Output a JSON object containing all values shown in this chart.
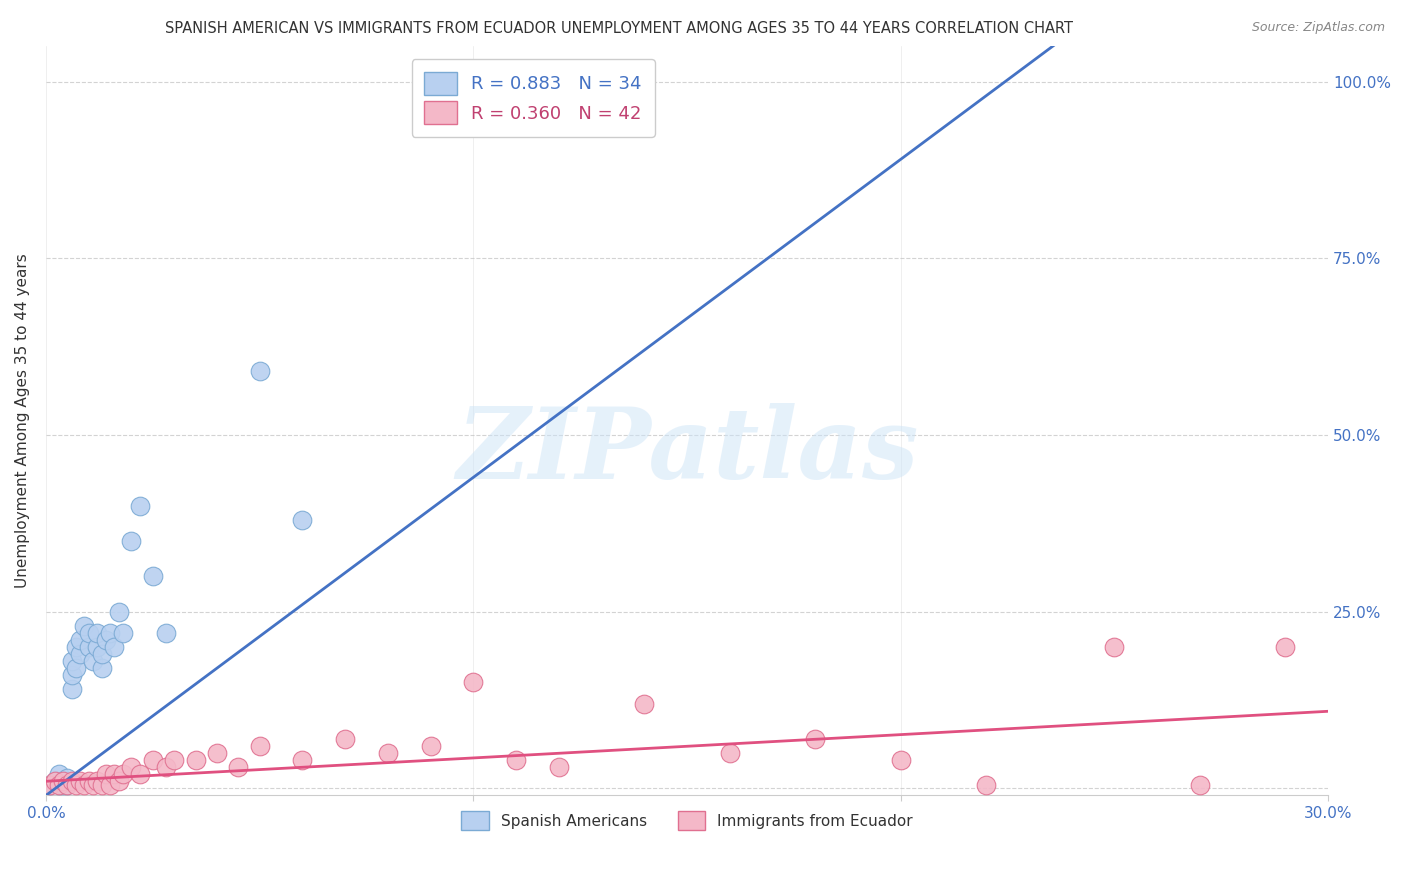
{
  "title": "SPANISH AMERICAN VS IMMIGRANTS FROM ECUADOR UNEMPLOYMENT AMONG AGES 35 TO 44 YEARS CORRELATION CHART",
  "source": "Source: ZipAtlas.com",
  "ylabel": "Unemployment Among Ages 35 to 44 years",
  "x_range": [
    0.0,
    0.3
  ],
  "y_range": [
    -0.01,
    1.05
  ],
  "watermark": "ZIPatlas",
  "legend_entries": [
    {
      "label": "R = 0.883   N = 34",
      "color": "#b8d0f0",
      "edge_color": "#7baad4",
      "text_color": "#4472c4"
    },
    {
      "label": "R = 0.360   N = 42",
      "color": "#f4b8c8",
      "edge_color": "#e07090",
      "text_color": "#c04070"
    }
  ],
  "spanish_americans": {
    "color": "#b8d0f0",
    "edge_color": "#7baad4",
    "line_color": "#4472c4",
    "x": [
      0.001,
      0.002,
      0.003,
      0.003,
      0.004,
      0.004,
      0.005,
      0.005,
      0.006,
      0.006,
      0.006,
      0.007,
      0.007,
      0.008,
      0.008,
      0.009,
      0.01,
      0.01,
      0.011,
      0.012,
      0.012,
      0.013,
      0.013,
      0.014,
      0.015,
      0.016,
      0.017,
      0.018,
      0.02,
      0.022,
      0.025,
      0.028,
      0.05,
      0.06
    ],
    "y": [
      0.005,
      0.01,
      0.005,
      0.02,
      0.005,
      0.01,
      0.005,
      0.015,
      0.14,
      0.16,
      0.18,
      0.17,
      0.2,
      0.19,
      0.21,
      0.23,
      0.2,
      0.22,
      0.18,
      0.2,
      0.22,
      0.17,
      0.19,
      0.21,
      0.22,
      0.2,
      0.25,
      0.22,
      0.35,
      0.4,
      0.3,
      0.22,
      0.59,
      0.38
    ]
  },
  "ecuador_immigrants": {
    "color": "#f4b8c8",
    "edge_color": "#e07090",
    "line_color": "#e05080",
    "x": [
      0.001,
      0.002,
      0.003,
      0.004,
      0.005,
      0.006,
      0.007,
      0.008,
      0.009,
      0.01,
      0.011,
      0.012,
      0.013,
      0.014,
      0.015,
      0.016,
      0.017,
      0.018,
      0.02,
      0.022,
      0.025,
      0.028,
      0.03,
      0.035,
      0.04,
      0.045,
      0.05,
      0.06,
      0.07,
      0.08,
      0.09,
      0.1,
      0.11,
      0.12,
      0.14,
      0.16,
      0.18,
      0.2,
      0.22,
      0.25,
      0.27,
      0.29
    ],
    "y": [
      0.005,
      0.01,
      0.005,
      0.01,
      0.005,
      0.01,
      0.005,
      0.01,
      0.005,
      0.01,
      0.005,
      0.01,
      0.005,
      0.02,
      0.005,
      0.02,
      0.01,
      0.02,
      0.03,
      0.02,
      0.04,
      0.03,
      0.04,
      0.04,
      0.05,
      0.03,
      0.06,
      0.04,
      0.07,
      0.05,
      0.06,
      0.15,
      0.04,
      0.03,
      0.12,
      0.05,
      0.07,
      0.04,
      0.005,
      0.2,
      0.005,
      0.2
    ]
  },
  "background_color": "#ffffff",
  "grid_color": "#c8c8c8",
  "title_color": "#333333",
  "title_fontsize": 10.5,
  "tick_label_color": "#4472c4",
  "y_ticks": [
    0.0,
    0.25,
    0.5,
    0.75,
    1.0
  ],
  "y_tick_labels": [
    "",
    "25.0%",
    "50.0%",
    "75.0%",
    "100.0%"
  ],
  "x_tick_positions": [
    0.0,
    0.1,
    0.2,
    0.3
  ],
  "x_tick_labels": [
    "0.0%",
    "",
    "",
    "30.0%"
  ]
}
